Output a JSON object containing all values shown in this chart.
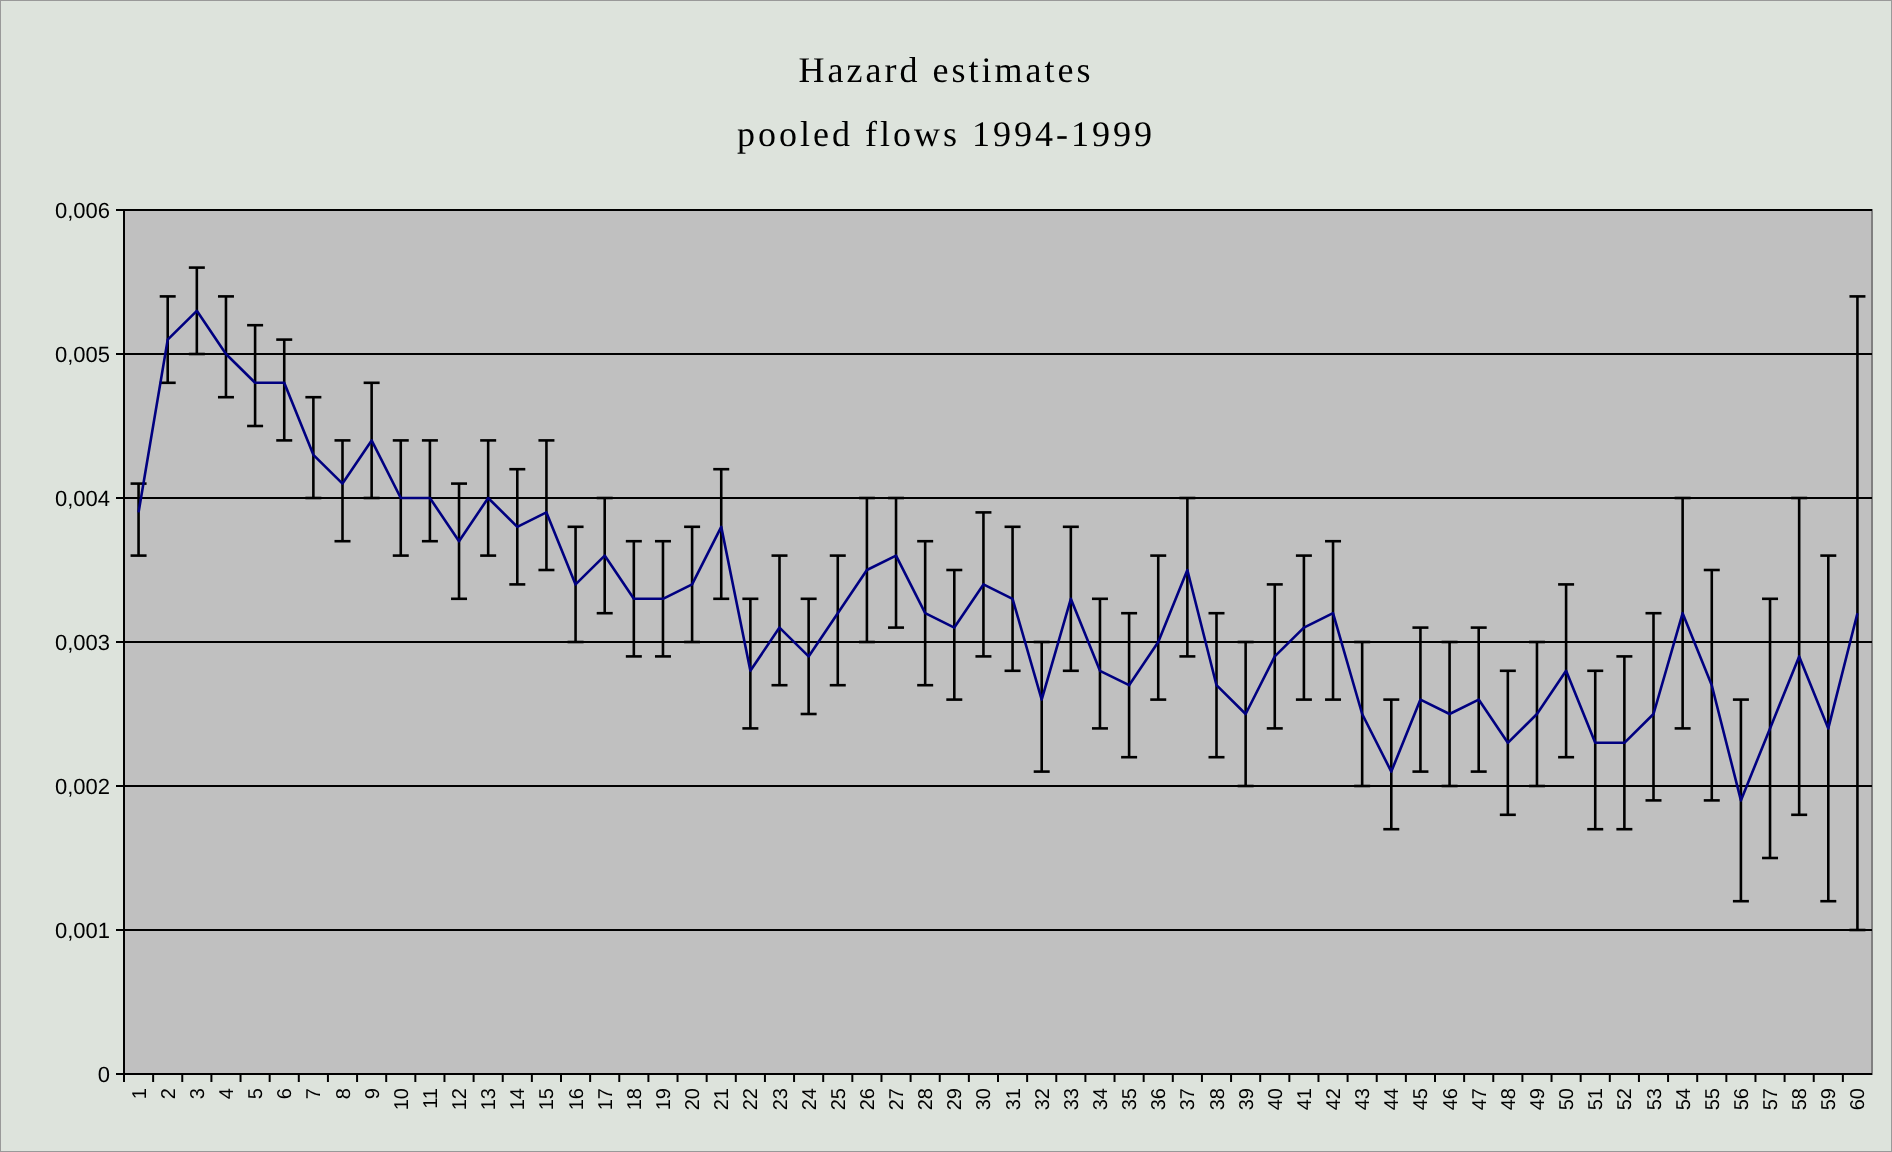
{
  "chart_data": {
    "type": "line",
    "title": "Hazard estimates",
    "subtitle": "pooled flows 1994-1999",
    "categories": [
      "1",
      "2",
      "3",
      "4",
      "5",
      "6",
      "7",
      "8",
      "9",
      "10",
      "11",
      "12",
      "13",
      "14",
      "15",
      "16",
      "17",
      "18",
      "19",
      "20",
      "21",
      "22",
      "23",
      "24",
      "25",
      "26",
      "27",
      "28",
      "29",
      "30",
      "31",
      "32",
      "33",
      "34",
      "35",
      "36",
      "37",
      "38",
      "39",
      "40",
      "41",
      "42",
      "43",
      "44",
      "45",
      "46",
      "47",
      "48",
      "49",
      "50",
      "51",
      "52",
      "53",
      "54",
      "55",
      "56",
      "57",
      "58",
      "59",
      "60"
    ],
    "series": [
      {
        "color": "#000080",
        "values": [
          0.0039,
          0.0051,
          0.0053,
          0.005,
          0.0048,
          0.0048,
          0.0043,
          0.0041,
          0.0044,
          0.004,
          0.004,
          0.0037,
          0.004,
          0.0038,
          0.0039,
          0.0034,
          0.0036,
          0.0033,
          0.0033,
          0.0034,
          0.0038,
          0.0028,
          0.0031,
          0.0029,
          0.0032,
          0.0035,
          0.0036,
          0.0032,
          0.0031,
          0.0034,
          0.0033,
          0.0026,
          0.0033,
          0.0028,
          0.0027,
          0.003,
          0.0035,
          0.0027,
          0.0025,
          0.0029,
          0.0031,
          0.0032,
          0.0025,
          0.0021,
          0.0026,
          0.0025,
          0.0026,
          0.0023,
          0.0025,
          0.0028,
          0.0023,
          0.0023,
          0.0025,
          0.0032,
          0.0027,
          0.0019,
          0.0024,
          0.0029,
          0.0024,
          0.0032
        ],
        "errors": [
          [
            0.0036,
            0.0041
          ],
          [
            0.0048,
            0.0054
          ],
          [
            0.005,
            0.0056
          ],
          [
            0.0047,
            0.0054
          ],
          [
            0.0045,
            0.0052
          ],
          [
            0.0044,
            0.0051
          ],
          [
            0.004,
            0.0047
          ],
          [
            0.0037,
            0.0044
          ],
          [
            0.004,
            0.0048
          ],
          [
            0.0036,
            0.0044
          ],
          [
            0.0037,
            0.0044
          ],
          [
            0.0033,
            0.0041
          ],
          [
            0.0036,
            0.0044
          ],
          [
            0.0034,
            0.0042
          ],
          [
            0.0035,
            0.0044
          ],
          [
            0.003,
            0.0038
          ],
          [
            0.0032,
            0.004
          ],
          [
            0.0029,
            0.0037
          ],
          [
            0.0029,
            0.0037
          ],
          [
            0.003,
            0.0038
          ],
          [
            0.0033,
            0.0042
          ],
          [
            0.0024,
            0.0033
          ],
          [
            0.0027,
            0.0036
          ],
          [
            0.0025,
            0.0033
          ],
          [
            0.0027,
            0.0036
          ],
          [
            0.003,
            0.004
          ],
          [
            0.0031,
            0.004
          ],
          [
            0.0027,
            0.0037
          ],
          [
            0.0026,
            0.0035
          ],
          [
            0.0029,
            0.0039
          ],
          [
            0.0028,
            0.0038
          ],
          [
            0.0021,
            0.003
          ],
          [
            0.0028,
            0.0038
          ],
          [
            0.0024,
            0.0033
          ],
          [
            0.0022,
            0.0032
          ],
          [
            0.0026,
            0.0036
          ],
          [
            0.0029,
            0.004
          ],
          [
            0.0022,
            0.0032
          ],
          [
            0.002,
            0.003
          ],
          [
            0.0024,
            0.0034
          ],
          [
            0.0026,
            0.0036
          ],
          [
            0.0026,
            0.0037
          ],
          [
            0.002,
            0.003
          ],
          [
            0.0017,
            0.0026
          ],
          [
            0.0021,
            0.0031
          ],
          [
            0.002,
            0.003
          ],
          [
            0.0021,
            0.0031
          ],
          [
            0.0018,
            0.0028
          ],
          [
            0.002,
            0.003
          ],
          [
            0.0022,
            0.0034
          ],
          [
            0.0017,
            0.0028
          ],
          [
            0.0017,
            0.0029
          ],
          [
            0.0019,
            0.0032
          ],
          [
            0.0024,
            0.004
          ],
          [
            0.0019,
            0.0035
          ],
          [
            0.0012,
            0.0026
          ],
          [
            0.0015,
            0.0033
          ],
          [
            0.0018,
            0.004
          ],
          [
            0.0012,
            0.0036
          ],
          [
            0.001,
            0.0054
          ]
        ]
      }
    ],
    "ylim": [
      0,
      0.006
    ],
    "yticks": [
      {
        "value": 0,
        "label": "0"
      },
      {
        "value": 0.001,
        "label": "0,001"
      },
      {
        "value": 0.002,
        "label": "0,002"
      },
      {
        "value": 0.003,
        "label": "0,003"
      },
      {
        "value": 0.004,
        "label": "0,004"
      },
      {
        "value": 0.005,
        "label": "0,005"
      },
      {
        "value": 0.006,
        "label": "0,006"
      }
    ],
    "grid": "y",
    "marker": "none",
    "line_style": "solid"
  }
}
